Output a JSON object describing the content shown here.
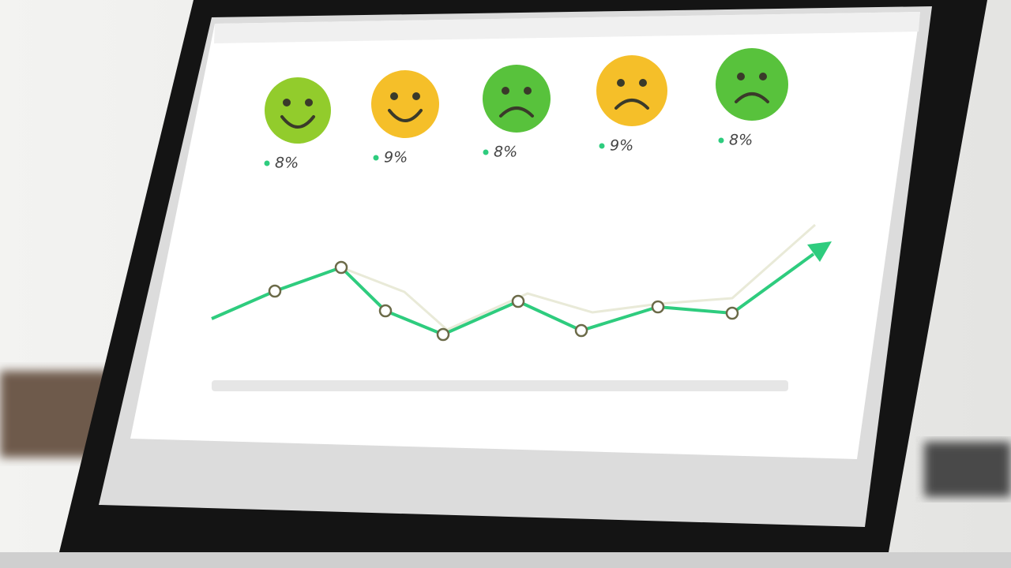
{
  "faces": [
    {
      "label": "8%"
    },
    {
      "label": "9%"
    },
    {
      "label": "8%"
    },
    {
      "label": "9%"
    },
    {
      "label": "8%"
    }
  ]
}
